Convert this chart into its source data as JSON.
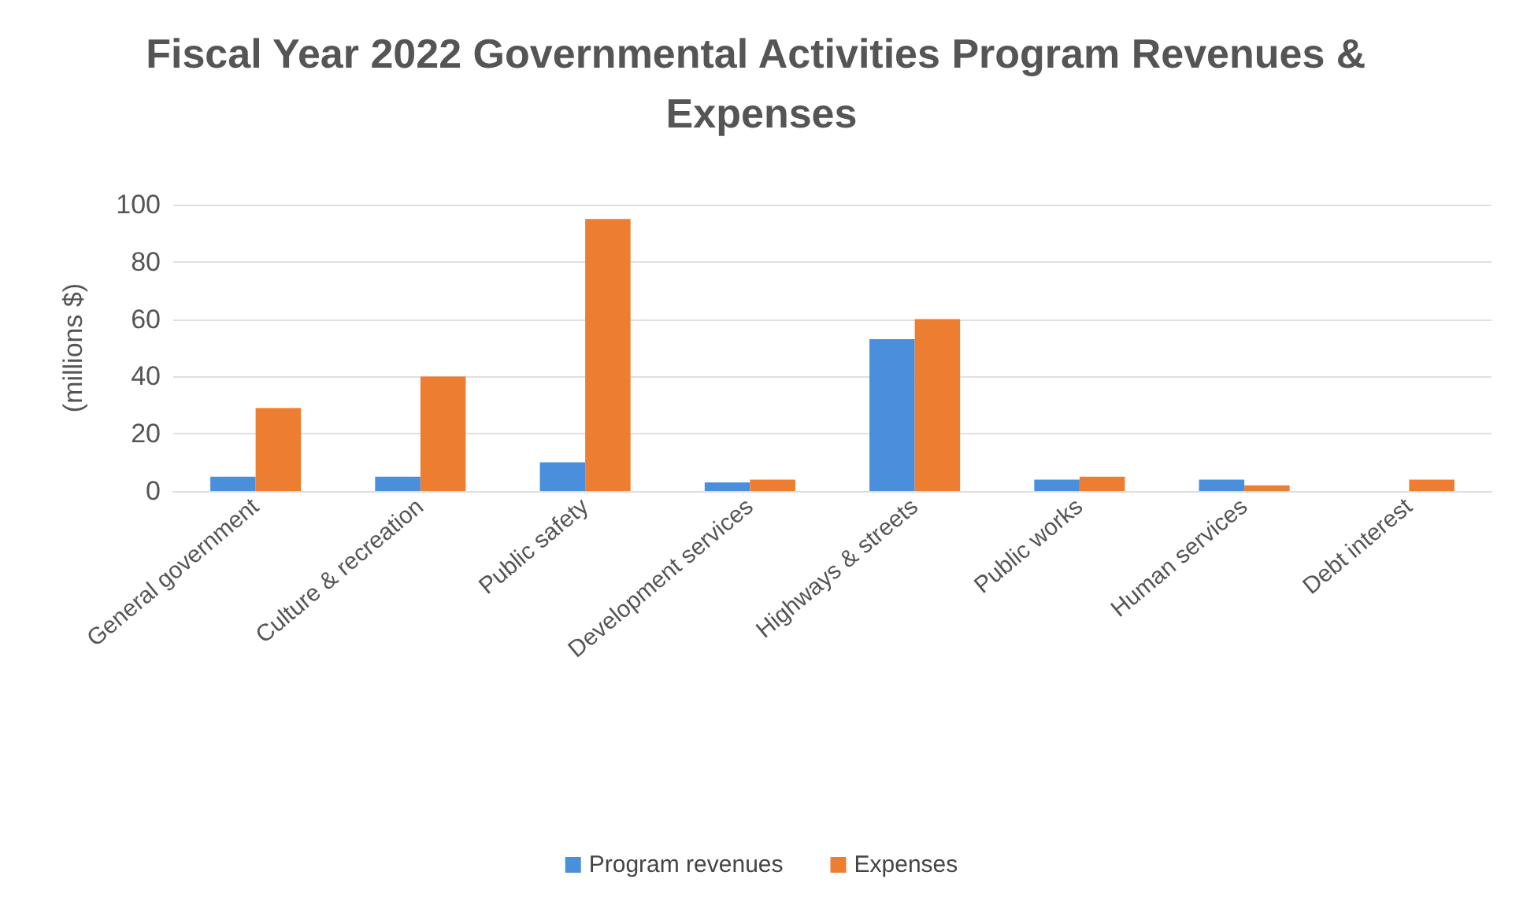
{
  "chart_data": {
    "type": "bar",
    "title": "Fiscal Year 2022 Governmental Activities Program Revenues & Expenses",
    "ylabel": "(millions $)",
    "categories": [
      "General government",
      "Culture & recreation",
      "Public safety",
      "Development services",
      "Highways & streets",
      "Public works",
      "Human services",
      "Debt interest"
    ],
    "series": [
      {
        "name": "Program revenues",
        "color": "#4a8fdc",
        "values": [
          5,
          5,
          10,
          3,
          53,
          4,
          4,
          0
        ]
      },
      {
        "name": "Expenses",
        "color": "#ed7d31",
        "values": [
          29,
          40,
          95,
          4,
          60,
          5,
          2,
          4
        ]
      }
    ],
    "ylim": [
      0,
      100
    ],
    "yticks": [
      0,
      20,
      40,
      60,
      80,
      100
    ],
    "grid": "y",
    "legend": "bottom"
  }
}
